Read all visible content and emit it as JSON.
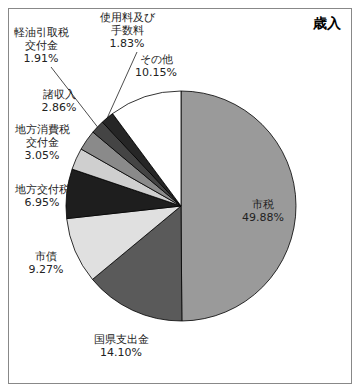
{
  "chart_data": {
    "type": "pie",
    "title": "歳入",
    "categories": [
      "市税",
      "国県支出金",
      "市債",
      "地方交付税",
      "地方消費税交付金",
      "諸収入",
      "軽油引取税交付金",
      "使用料及び手数料",
      "その他"
    ],
    "values": [
      49.88,
      14.1,
      9.27,
      6.95,
      3.05,
      2.86,
      1.91,
      1.83,
      10.15
    ],
    "value_labels": [
      "49.88%",
      "14.10%",
      "9.27%",
      "6.95%",
      "3.05%",
      "2.86%",
      "1.91%",
      "1.83%",
      "10.15%"
    ],
    "colors": [
      "#9a9a9a",
      "#5a5a5a",
      "#e0e0e0",
      "#1e1e1e",
      "#cfcfcf",
      "#8a8a8a",
      "#444444",
      "#262626",
      "#ffffff"
    ],
    "data_labels": true
  }
}
